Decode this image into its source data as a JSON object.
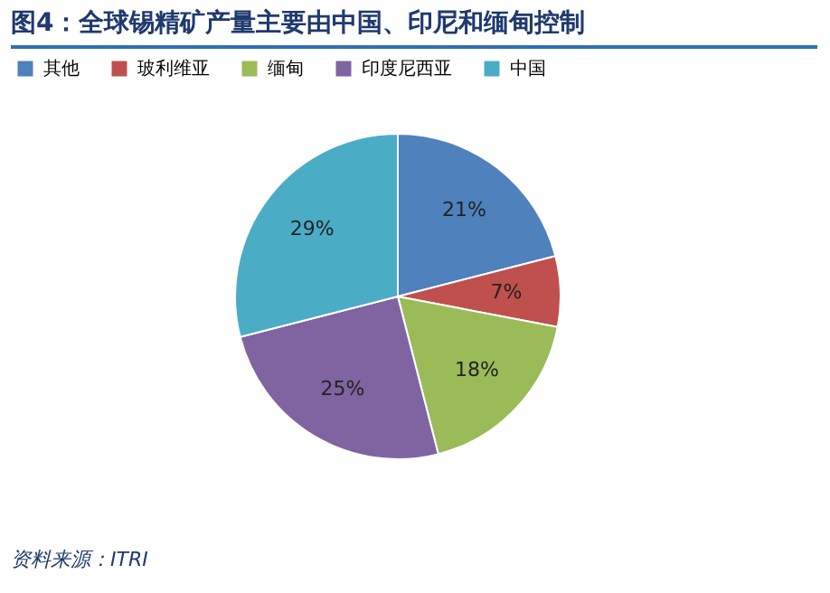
{
  "chart_data": {
    "type": "pie",
    "title": "图4：全球锡精矿产量主要由中国、印尼和缅甸控制",
    "categories": [
      "其他",
      "玻利维亚",
      "缅甸",
      "印度尼西亚",
      "中国"
    ],
    "values": [
      21,
      7,
      18,
      25,
      29
    ],
    "colors": [
      "#4f81bd",
      "#c0504d",
      "#9bbb59",
      "#8064a2",
      "#4bacc6"
    ],
    "value_labels": [
      "21%",
      "7%",
      "18%",
      "25%",
      "29%"
    ],
    "legend": "top",
    "annotations": [
      "资料来源：ITRI"
    ]
  }
}
